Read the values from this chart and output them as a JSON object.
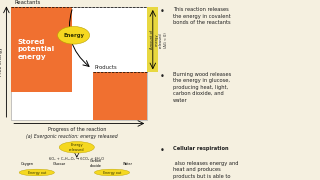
{
  "bg_color": "#f5f0e0",
  "orange_color": "#f07030",
  "yellow_color": "#f5d820",
  "yellow_annotation": "#e8d840",
  "stored_label": "Stored\npotential\nenergy",
  "energy_label": "Energy",
  "reactants_label": "Reactants",
  "products_label": "Products",
  "free_energy_label": "Free energy",
  "progress_label": "Progress of the reaction",
  "amount_label": "Amount of\nenergy\nreleased\n(ΔG < 0)",
  "title_left": "(a) Exergonic reaction: energy released",
  "bottom_formula": "6O₂ + C₆H₁₂O₆ → 6CO₂ + 6H₂O",
  "bottom_labels": [
    "Oxygen",
    "Glucose",
    "Carbon\ndioxide",
    "Water"
  ],
  "energy_released_label": "Energy\nreleased",
  "energy_out_labels": [
    "Energy out",
    "Energy out"
  ],
  "bullet1": "This reaction releases\nthe energy in covalent\nbonds of the reactants",
  "bullet2": "Burning wood releases\nthe energy in glucose,\nproducing heat, light,\ncarbon dioxide, and\nwater",
  "bullet3_bold": "Cellular respiration",
  "bullet3_rest": " also releases energy and\nheat and produces\nproducts but is able to"
}
